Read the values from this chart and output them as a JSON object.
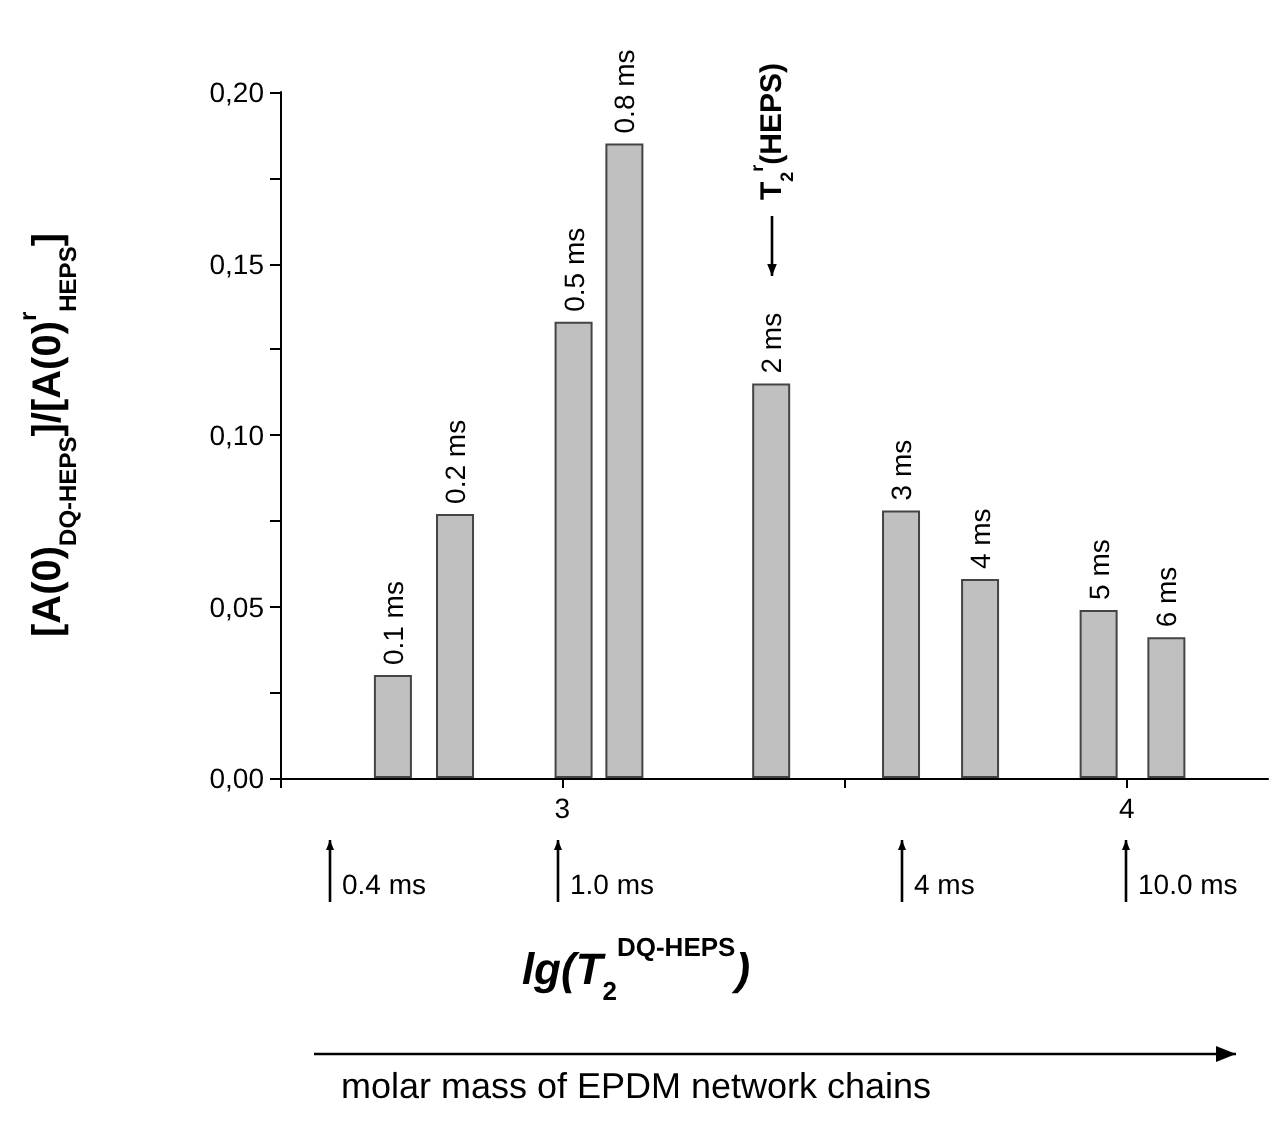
{
  "chart_data": {
    "type": "bar",
    "xlabel": "lg(T$_{2}$$^{DQ-HEPS}$)",
    "ylabel": "[A(0)$_{DQ-HEPS}$]/[A(0)$^{r}$$_{HEPS}$]",
    "x": [
      2.7,
      2.81,
      3.02,
      3.11,
      3.37,
      3.6,
      3.74,
      3.95,
      4.07
    ],
    "values": [
      0.03,
      0.077,
      0.133,
      0.185,
      0.115,
      0.078,
      0.058,
      0.049,
      0.041
    ],
    "color": "#c0c0c0",
    "xlim": [
      2.5,
      4.25
    ],
    "xticks": [
      {
        "value": 2.5,
        "label": null
      },
      3,
      {
        "value": 3.5,
        "label": null
      },
      4
    ],
    "ylim": [
      0,
      0.2
    ],
    "yticks": [
      {
        "value": 0,
        "label": "0,00"
      },
      {
        "value": 0.025,
        "label": null
      },
      {
        "value": 0.05,
        "label": "0,05"
      },
      {
        "value": 0.075,
        "label": null
      },
      {
        "value": 0.1,
        "label": "0,10"
      },
      {
        "value": 0.125,
        "label": null
      },
      {
        "value": 0.15,
        "label": "0,15"
      },
      {
        "value": 0.175,
        "label": null
      },
      {
        "value": 0.2,
        "label": "0,20"
      }
    ],
    "annotations": [
      {
        "text": "0.1 ms",
        "x": 2.7,
        "y": 0.03
      },
      {
        "text": "0.2 ms",
        "x": 2.81,
        "y": 0.077
      },
      {
        "text": "0.5 ms",
        "x": 3.02,
        "y": 0.133
      },
      {
        "text": "0.8 ms",
        "x": 3.11,
        "y": 0.185
      },
      {
        "text": "2 ms",
        "x": 3.37,
        "y": 0.115
      },
      {
        "text": "3 ms",
        "x": 3.6,
        "y": 0.078
      },
      {
        "text": "4 ms",
        "x": 3.74,
        "y": 0.058
      },
      {
        "text": "5 ms",
        "x": 3.95,
        "y": 0.049
      },
      {
        "text": "6 ms",
        "x": 4.07,
        "y": 0.041
      },
      "T$_{2}$$^{r}$(HEPS)",
      "0.4 ms",
      "1.0 ms",
      "4 ms",
      "10.0 ms",
      "molar mass of EPDM network chains"
    ]
  }
}
